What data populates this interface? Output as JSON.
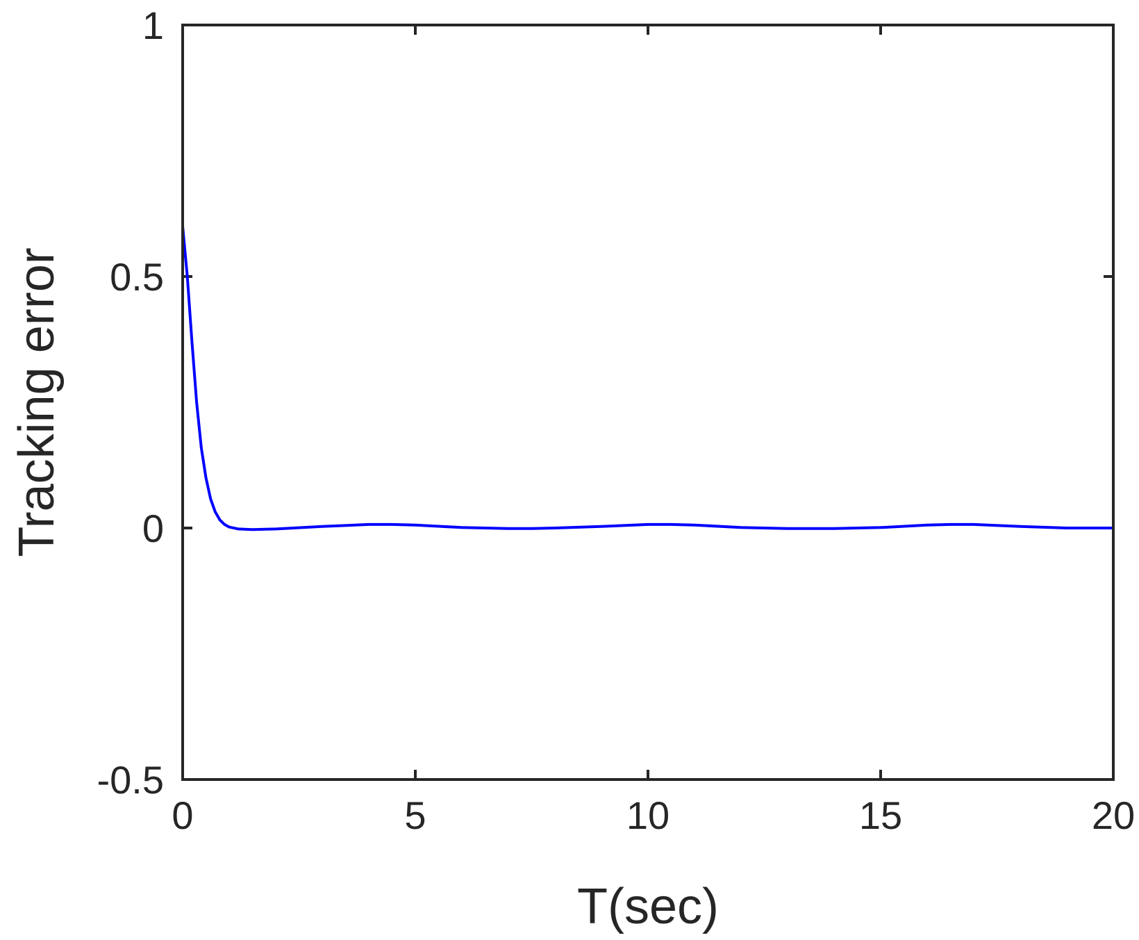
{
  "chart_data": {
    "type": "line",
    "title": "",
    "xlabel": "T(sec)",
    "ylabel": "Tracking error",
    "xlim": [
      0,
      20
    ],
    "ylim": [
      -0.5,
      1
    ],
    "x_ticks": [
      0,
      5,
      10,
      15,
      20
    ],
    "x_tick_labels": [
      "0",
      "5",
      "10",
      "15",
      "20"
    ],
    "y_ticks": [
      -0.5,
      0,
      0.5,
      1
    ],
    "y_tick_labels": [
      "-0.5",
      "0",
      "0.5",
      "1"
    ],
    "grid": false,
    "box": true,
    "series": [
      {
        "color": "#0000ff",
        "x": [
          0,
          0.1,
          0.2,
          0.3,
          0.4,
          0.5,
          0.6,
          0.7,
          0.8,
          0.9,
          1.0,
          1.2,
          1.5,
          2.0,
          3.0,
          4.0,
          4.5,
          5.0,
          6.0,
          7.0,
          7.5,
          8.0,
          9.0,
          10.0,
          10.5,
          11.0,
          12.0,
          13.0,
          14.0,
          15.0,
          16.0,
          16.5,
          17.0,
          18.0,
          19.0,
          20.0
        ],
        "y": [
          0.6,
          0.5,
          0.37,
          0.25,
          0.16,
          0.1,
          0.058,
          0.032,
          0.016,
          0.007,
          0.002,
          -0.002,
          -0.003,
          -0.002,
          0.003,
          0.007,
          0.007,
          0.006,
          0.001,
          -0.001,
          -0.001,
          0.0,
          0.003,
          0.007,
          0.007,
          0.006,
          0.001,
          -0.001,
          -0.001,
          0.001,
          0.006,
          0.007,
          0.007,
          0.003,
          0.0,
          0.0
        ]
      }
    ]
  }
}
